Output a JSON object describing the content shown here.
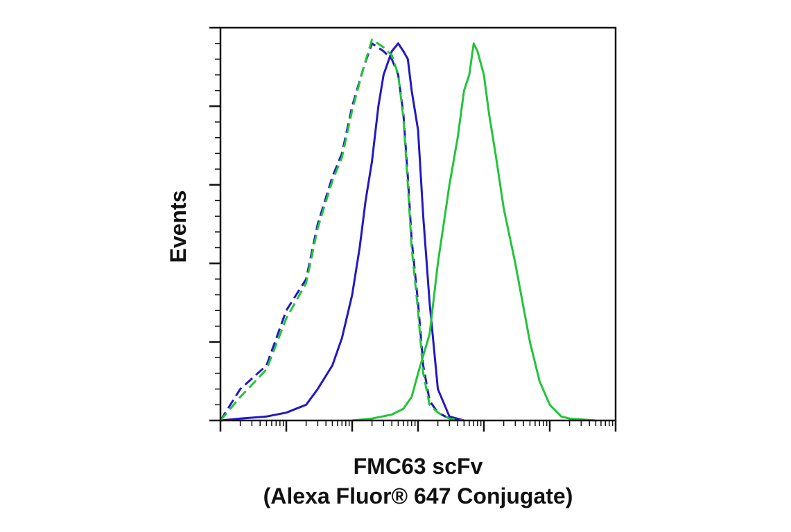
{
  "chart_data": {
    "type": "line",
    "title": "",
    "xlabel": "FMC63 scFv",
    "xlabel_line2": "(Alexa Fluor® 647 Conjugate)",
    "ylabel": "Events",
    "x_scale": "log",
    "xlim": [
      0.1,
      100000
    ],
    "ylim": [
      0,
      100
    ],
    "y_ticks_major": [
      0,
      20,
      40,
      60,
      80,
      100
    ],
    "tick_labels_shown": false,
    "legend": "none",
    "grid": false,
    "series": [
      {
        "color": "#2218C4",
        "dash": "solid",
        "x": [
          0.1,
          0.2,
          0.5,
          1,
          2,
          3,
          5,
          7,
          10,
          13,
          16,
          20,
          22,
          25,
          30,
          40,
          50,
          60,
          70,
          80,
          100,
          120,
          150,
          200,
          300,
          500
        ],
        "values": [
          0,
          0.5,
          1,
          2,
          4,
          8,
          14,
          21,
          32,
          44,
          56,
          66,
          72,
          80,
          88,
          94,
          96,
          94,
          92,
          84,
          74,
          52,
          30,
          8,
          1,
          0
        ]
      },
      {
        "color": "#2218C4",
        "dash": "dashed",
        "x": [
          0.1,
          0.2,
          0.5,
          1,
          2,
          3,
          5,
          7,
          10,
          15,
          20,
          30,
          40,
          50,
          60,
          70,
          80,
          100,
          120,
          150,
          200,
          300,
          500
        ],
        "values": [
          0,
          8,
          14,
          28,
          36,
          50,
          62,
          68,
          80,
          90,
          96,
          94,
          92,
          88,
          78,
          62,
          46,
          30,
          14,
          5,
          2,
          0.5,
          0
        ]
      },
      {
        "color": "#22C43A",
        "dash": "dashed",
        "x": [
          0.1,
          0.2,
          0.5,
          1,
          2,
          3,
          5,
          7,
          10,
          15,
          20,
          30,
          40,
          50,
          60,
          70,
          80,
          100,
          120,
          150,
          200,
          300,
          500
        ],
        "values": [
          0,
          6,
          13,
          26,
          35,
          49,
          61,
          67,
          79,
          90,
          97,
          95,
          93,
          88,
          77,
          60,
          44,
          28,
          12,
          4,
          2,
          0.5,
          0
        ]
      },
      {
        "color": "#22C43A",
        "dash": "solid",
        "x": [
          10,
          20,
          40,
          60,
          80,
          100,
          150,
          200,
          300,
          400,
          500,
          600,
          700,
          800,
          1000,
          1200,
          1500,
          2000,
          3000,
          5000,
          7000,
          10000,
          15000,
          20000,
          50000
        ],
        "values": [
          0,
          0.5,
          1.5,
          3,
          6,
          12,
          22,
          40,
          60,
          72,
          84,
          88,
          96,
          94,
          88,
          78,
          68,
          54,
          40,
          20,
          10,
          4,
          1,
          0.5,
          0
        ]
      }
    ]
  }
}
